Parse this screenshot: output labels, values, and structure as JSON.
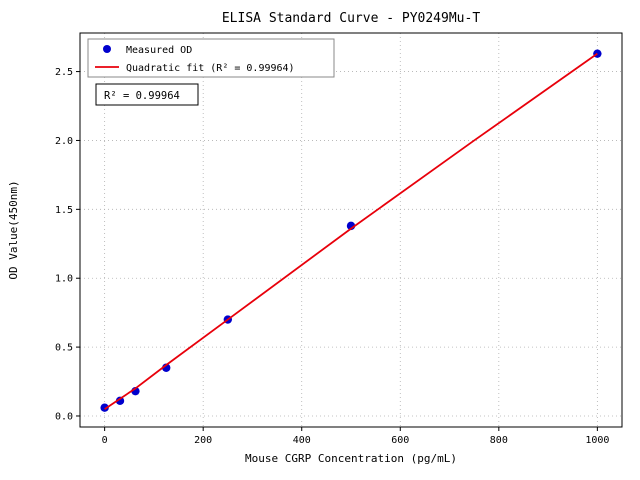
{
  "figure": {
    "title": "ELISA Standard Curve - PY0249Mu-T",
    "xlabel": "Mouse CGRP Concentration (pg/mL)",
    "ylabel": "OD Value(450nm)",
    "annotation": "R² = 0.99964",
    "background_color": "#ffffff",
    "point_color": "#0000cd",
    "line_color": "#e8000b"
  },
  "chart_data": {
    "type": "scatter",
    "title": "ELISA Standard Curve - PY0249Mu-T",
    "xlabel": "Mouse CGRP Concentration (pg/mL)",
    "ylabel": "OD Value(450nm)",
    "xlim": [
      -50,
      1050
    ],
    "ylim": [
      -0.08,
      2.78
    ],
    "xticks": [
      0,
      200,
      400,
      600,
      800,
      1000
    ],
    "yticks": [
      0.0,
      0.5,
      1.0,
      1.5,
      2.0,
      2.5
    ],
    "grid": true,
    "legend_position": "upper left",
    "annotation": "R² = 0.99964",
    "series": [
      {
        "name": "Measured OD",
        "type": "scatter",
        "color": "#0000cd",
        "x": [
          0,
          31.2,
          62.5,
          125,
          250,
          500,
          1000
        ],
        "y": [
          0.06,
          0.11,
          0.18,
          0.35,
          0.7,
          1.38,
          2.63
        ]
      },
      {
        "name": "Quadratic fit (R² = 0.99964)",
        "type": "line",
        "color": "#e8000b",
        "x": [
          0,
          62.5,
          125,
          250,
          500,
          750,
          1000
        ],
        "y": [
          0.05,
          0.2,
          0.37,
          0.7,
          1.36,
          2.0,
          2.63
        ]
      }
    ]
  }
}
